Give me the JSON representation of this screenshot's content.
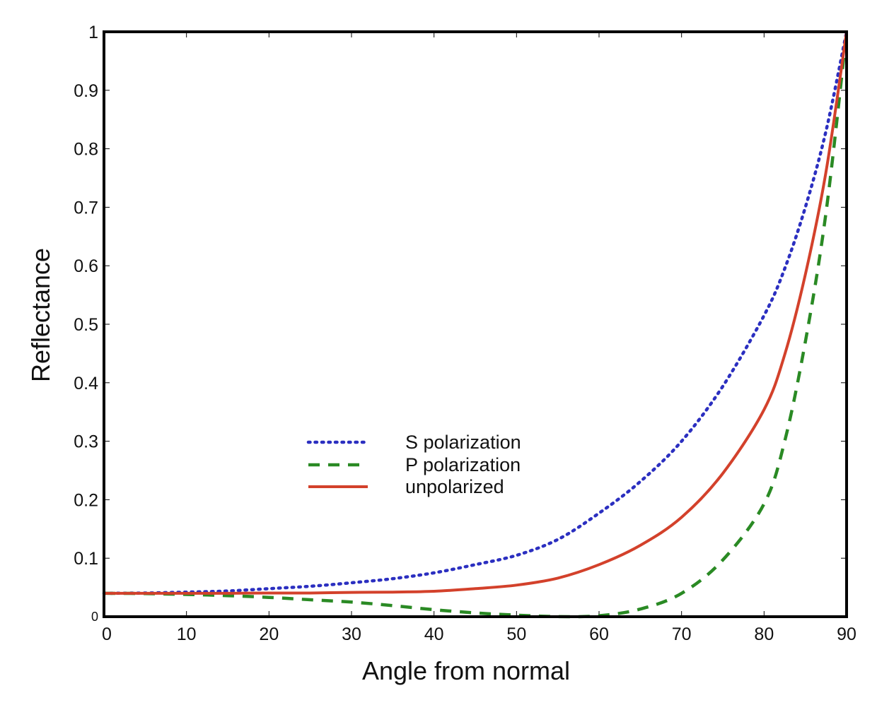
{
  "chart_data": {
    "type": "line",
    "title": "",
    "xlabel": "Angle from normal",
    "ylabel": "Reflectance",
    "xlim": [
      0,
      90
    ],
    "ylim": [
      0,
      1
    ],
    "grid": false,
    "legend_position": "center-left (lower half)",
    "x_ticks": [
      0,
      10,
      20,
      30,
      40,
      50,
      60,
      70,
      80,
      90
    ],
    "x_tick_labels": [
      "0",
      "10",
      "20",
      "30",
      "40",
      "50",
      "60",
      "70",
      "80",
      "90"
    ],
    "y_ticks": [
      0,
      0.1,
      0.2,
      0.3,
      0.4,
      0.5,
      0.6,
      0.7,
      0.8,
      0.9,
      1
    ],
    "y_tick_labels": [
      "0",
      "0.1",
      "0.2",
      "0.3",
      "0.4",
      "0.5",
      "0.6",
      "0.7",
      "0.8",
      "0.9",
      "1"
    ],
    "x": [
      0,
      5,
      10,
      15,
      20,
      25,
      30,
      35,
      40,
      45,
      50,
      55,
      60,
      65,
      70,
      75,
      80,
      82.5,
      85,
      87.5,
      90
    ],
    "series": [
      {
        "name": "S polarization",
        "style": "dotted",
        "color": "#2b2fc0",
        "values": [
          0.04,
          0.0405,
          0.042,
          0.044,
          0.048,
          0.052,
          0.058,
          0.065,
          0.075,
          0.089,
          0.105,
          0.132,
          0.177,
          0.231,
          0.3,
          0.394,
          0.515,
          0.595,
          0.7,
          0.83,
          1.0
        ]
      },
      {
        "name": "P polarization",
        "style": "dashed",
        "color": "#2a8a24",
        "values": [
          0.04,
          0.0395,
          0.038,
          0.036,
          0.033,
          0.029,
          0.025,
          0.019,
          0.012,
          0.0065,
          0.0027,
          0.0002,
          0.0017,
          0.013,
          0.04,
          0.097,
          0.193,
          0.3,
          0.47,
          0.69,
          1.0
        ]
      },
      {
        "name": "unpolarized",
        "style": "solid",
        "color": "#d3412b",
        "values": [
          0.04,
          0.04,
          0.04,
          0.04,
          0.0405,
          0.0405,
          0.0415,
          0.042,
          0.0435,
          0.048,
          0.054,
          0.066,
          0.089,
          0.122,
          0.17,
          0.245,
          0.354,
          0.448,
          0.585,
          0.76,
          1.0
        ]
      }
    ]
  }
}
